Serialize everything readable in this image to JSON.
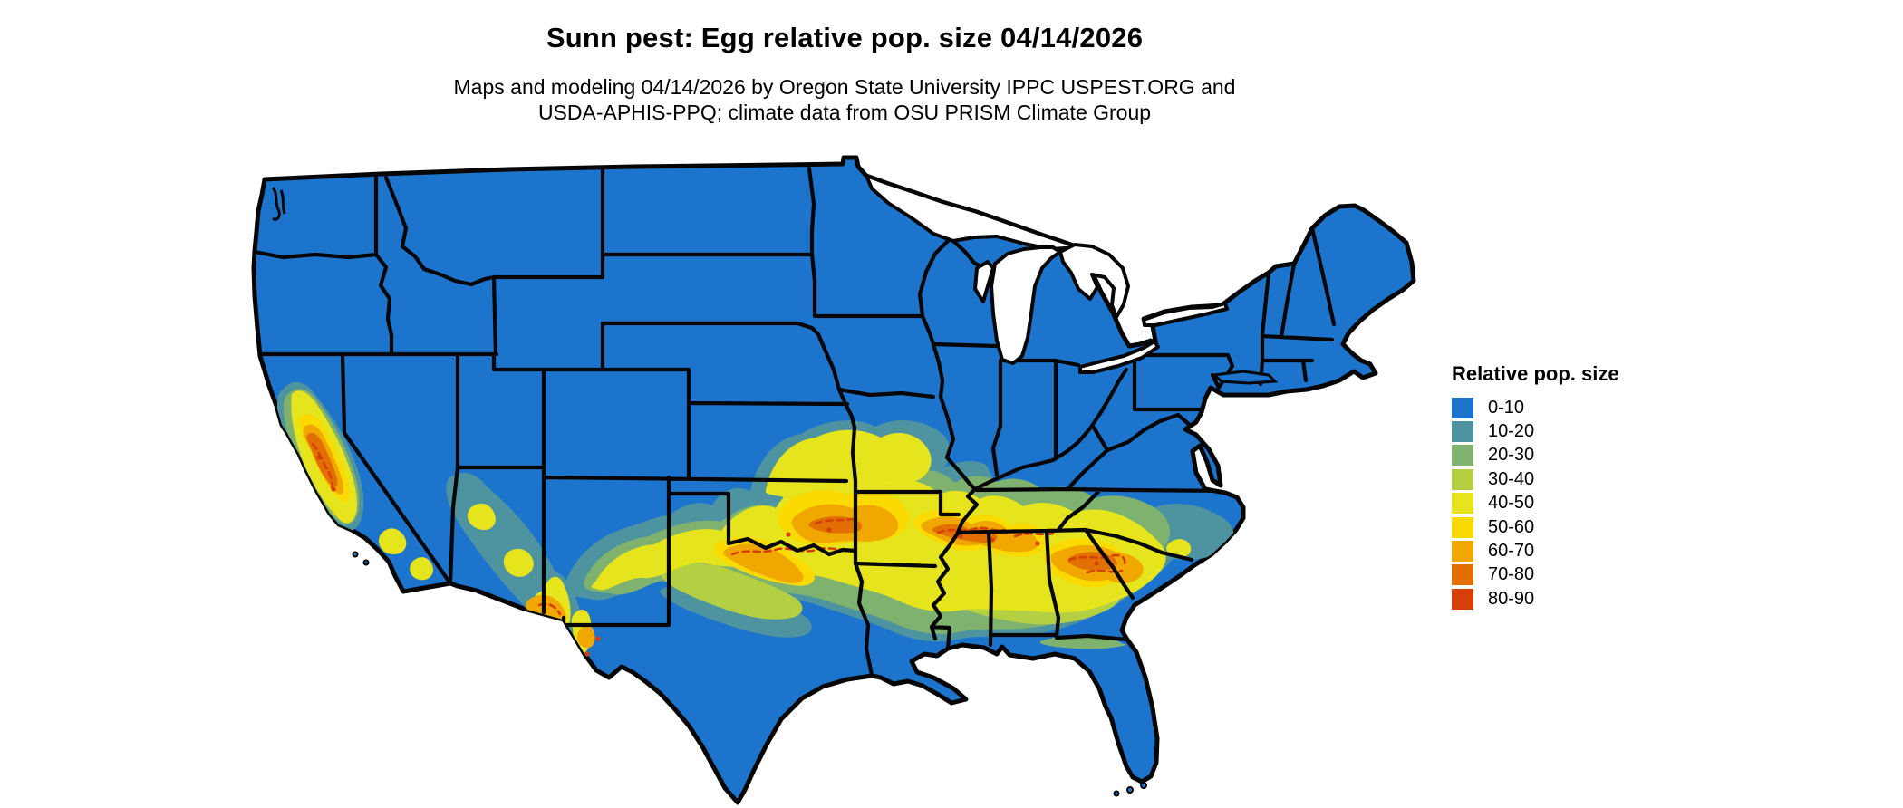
{
  "main": {
    "title": "Sunn pest: Egg relative pop. size 04/14/2026",
    "subtitle_line1": "Maps and modeling 04/14/2026 by Oregon State University IPPC USPEST.ORG and",
    "subtitle_line2": "USDA-APHIS-PPQ; climate data from OSU PRISM Climate Group"
  },
  "legend": {
    "title": "Relative pop. size",
    "items": [
      {
        "label": "0-10",
        "color": "#1d74cc"
      },
      {
        "label": "10-20",
        "color": "#4e93a0"
      },
      {
        "label": "20-30",
        "color": "#7eb26e"
      },
      {
        "label": "30-40",
        "color": "#b5cf43"
      },
      {
        "label": "40-50",
        "color": "#e6e41c"
      },
      {
        "label": "50-60",
        "color": "#fada00"
      },
      {
        "label": "60-70",
        "color": "#f0a800"
      },
      {
        "label": "70-80",
        "color": "#e17000"
      },
      {
        "label": "80-90",
        "color": "#d63f08"
      }
    ]
  },
  "map": {
    "region": "Contiguous United States",
    "border_color": "#060606",
    "water_color": "#ffffff"
  }
}
